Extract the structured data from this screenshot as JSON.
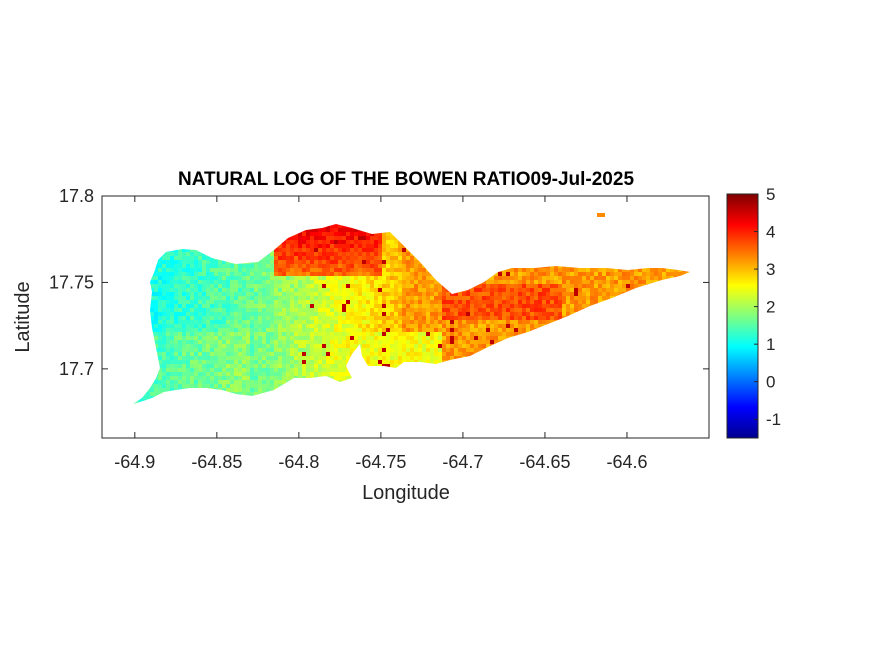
{
  "chart_data": {
    "type": "heatmap",
    "title": "NATURAL LOG OF THE BOWEN RATIO09-Jul-2025",
    "xlabel": "Longitude",
    "ylabel": "Latitude",
    "xlim": [
      -64.92,
      -64.55
    ],
    "ylim": [
      17.66,
      17.8
    ],
    "xticks": [
      -64.9,
      -64.85,
      -64.8,
      -64.75,
      -64.7,
      -64.65,
      -64.6
    ],
    "xtick_labels": [
      "-64.9",
      "-64.85",
      "-64.8",
      "-64.75",
      "-64.7",
      "-64.65",
      "-64.6"
    ],
    "yticks": [
      17.7,
      17.75,
      17.8
    ],
    "ytick_labels": [
      "17.7",
      "17.75",
      "17.8"
    ],
    "colormap": "jet",
    "clim": [
      -1.5,
      5
    ],
    "colorbar_ticks": [
      -1,
      0,
      1,
      2,
      3,
      4,
      5
    ],
    "colorbar_tick_labels": [
      "-1",
      "0",
      "1",
      "2",
      "3",
      "4",
      "5"
    ],
    "colorbar_location": "right",
    "grid": false,
    "approx_field": {
      "west_lon": -64.88,
      "west_value": 1.1,
      "central_lon": -64.76,
      "central_value": 2.5,
      "east_value": 3.2,
      "north_central_value": 4.2,
      "south_central_value": 2.1
    }
  }
}
